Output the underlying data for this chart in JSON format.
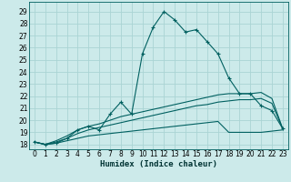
{
  "title": "",
  "xlabel": "Humidex (Indice chaleur)",
  "ylabel": "",
  "bg_color": "#cceaea",
  "grid_color": "#aad4d4",
  "line_color": "#006060",
  "xlim": [
    -0.5,
    23.5
  ],
  "ylim": [
    17.6,
    29.8
  ],
  "xticks": [
    0,
    1,
    2,
    3,
    4,
    5,
    6,
    7,
    8,
    9,
    10,
    11,
    12,
    13,
    14,
    15,
    16,
    17,
    18,
    19,
    20,
    21,
    22,
    23
  ],
  "yticks": [
    18,
    19,
    20,
    21,
    22,
    23,
    24,
    25,
    26,
    27,
    28,
    29
  ],
  "lines": [
    {
      "x": [
        0,
        1,
        2,
        3,
        4,
        5,
        6,
        7,
        8,
        9,
        10,
        11,
        12,
        13,
        14,
        15,
        16,
        17,
        18,
        19,
        20,
        21,
        22,
        23
      ],
      "y": [
        18.2,
        18.0,
        18.1,
        18.3,
        18.5,
        18.7,
        18.8,
        18.9,
        19.0,
        19.1,
        19.2,
        19.3,
        19.4,
        19.5,
        19.6,
        19.7,
        19.8,
        19.9,
        19.0,
        19.0,
        19.0,
        19.0,
        19.1,
        19.2
      ],
      "marker": null,
      "lw": 0.8
    },
    {
      "x": [
        0,
        1,
        2,
        3,
        4,
        5,
        6,
        7,
        8,
        9,
        10,
        11,
        12,
        13,
        14,
        15,
        16,
        17,
        18,
        19,
        20,
        21,
        22,
        23
      ],
      "y": [
        18.2,
        18.0,
        18.2,
        18.5,
        18.9,
        19.2,
        19.4,
        19.6,
        19.8,
        20.0,
        20.2,
        20.4,
        20.6,
        20.8,
        21.0,
        21.2,
        21.3,
        21.5,
        21.6,
        21.7,
        21.7,
        21.8,
        21.4,
        19.3
      ],
      "marker": null,
      "lw": 0.8
    },
    {
      "x": [
        0,
        1,
        2,
        3,
        4,
        5,
        6,
        7,
        8,
        9,
        10,
        11,
        12,
        13,
        14,
        15,
        16,
        17,
        18,
        19,
        20,
        21,
        22,
        23
      ],
      "y": [
        18.2,
        18.0,
        18.3,
        18.7,
        19.2,
        19.5,
        19.7,
        20.0,
        20.3,
        20.5,
        20.7,
        20.9,
        21.1,
        21.3,
        21.5,
        21.7,
        21.9,
        22.1,
        22.2,
        22.2,
        22.2,
        22.3,
        21.8,
        19.3
      ],
      "marker": null,
      "lw": 0.8
    },
    {
      "x": [
        0,
        1,
        2,
        3,
        4,
        5,
        6,
        7,
        8,
        9,
        10,
        11,
        12,
        13,
        14,
        15,
        16,
        17,
        18,
        19,
        20,
        21,
        22,
        23
      ],
      "y": [
        18.2,
        18.0,
        18.1,
        18.5,
        19.2,
        19.5,
        19.2,
        20.5,
        21.5,
        20.5,
        25.5,
        27.7,
        29.0,
        28.3,
        27.3,
        27.5,
        26.5,
        25.5,
        23.5,
        22.2,
        22.2,
        21.2,
        20.8,
        19.3
      ],
      "marker": "+",
      "lw": 0.8
    }
  ]
}
